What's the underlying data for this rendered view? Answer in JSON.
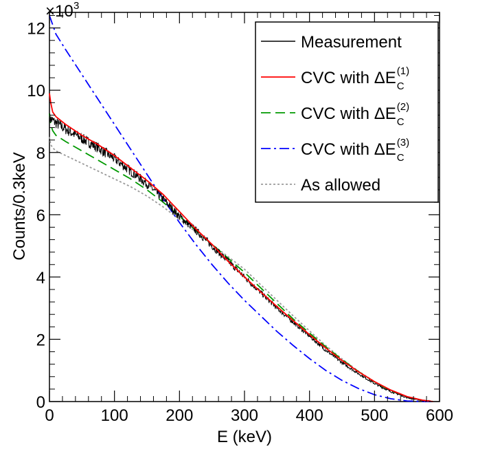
{
  "chart_data": {
    "type": "line",
    "xlabel": "E (keV)",
    "ylabel": "Counts/0.3keV",
    "xlim": [
      0,
      600
    ],
    "ylim": [
      0,
      12500
    ],
    "y_multiplier_label": "×10",
    "y_multiplier_exp": "3",
    "x_ticks": [
      0,
      100,
      200,
      300,
      400,
      500,
      600
    ],
    "y_ticks": [
      0,
      2000,
      4000,
      6000,
      8000,
      10000,
      12000
    ],
    "y_tick_labels": [
      "0",
      "2",
      "4",
      "6",
      "8",
      "10",
      "12"
    ],
    "legend_position": "top-right",
    "grid": false,
    "series": [
      {
        "name": "Measurement",
        "color": "#000000",
        "dash": "solid",
        "noise": true,
        "x": [
          0,
          10,
          25,
          50,
          75,
          100,
          125,
          150,
          175,
          200,
          225,
          250,
          275,
          300,
          325,
          350,
          375,
          400,
          425,
          450,
          475,
          500,
          525,
          550,
          575,
          590
        ],
        "y": [
          9100,
          8950,
          8750,
          8450,
          8150,
          7800,
          7400,
          7000,
          6500,
          5950,
          5500,
          5000,
          4500,
          4000,
          3500,
          3000,
          2550,
          2100,
          1650,
          1250,
          900,
          580,
          320,
          130,
          30,
          0
        ]
      },
      {
        "name": "CVC with ΔE_C^(1)",
        "label_main": "CVC with ΔE",
        "label_sub": "C",
        "label_sup": "(1)",
        "color": "#ff0000",
        "dash": "solid",
        "x": [
          0,
          2,
          5,
          10,
          25,
          50,
          75,
          100,
          125,
          150,
          175,
          200,
          225,
          250,
          275,
          300,
          325,
          350,
          375,
          400,
          425,
          450,
          475,
          500,
          525,
          550,
          575,
          590
        ],
        "y": [
          9900,
          9600,
          9300,
          9150,
          8900,
          8550,
          8250,
          7900,
          7500,
          7100,
          6650,
          6100,
          5550,
          5050,
          4500,
          4000,
          3520,
          3050,
          2600,
          2150,
          1720,
          1320,
          960,
          640,
          370,
          160,
          40,
          0
        ]
      },
      {
        "name": "CVC with ΔE_C^(2)",
        "label_main": "CVC with ΔE",
        "label_sub": "C",
        "label_sup": "(2)",
        "color": "#009900",
        "dash": "long-dash",
        "x": [
          0,
          2,
          5,
          10,
          25,
          50,
          75,
          100,
          125,
          150,
          175,
          200,
          225,
          250,
          275,
          300,
          325,
          350,
          375,
          400,
          425,
          450,
          475,
          500,
          525,
          550,
          575,
          590
        ],
        "y": [
          9250,
          8900,
          8700,
          8550,
          8350,
          8050,
          7750,
          7450,
          7150,
          6800,
          6400,
          5950,
          5500,
          5050,
          4600,
          4150,
          3650,
          3150,
          2650,
          2200,
          1760,
          1350,
          970,
          630,
          350,
          140,
          30,
          0
        ]
      },
      {
        "name": "CVC with ΔE_C^(3)",
        "label_main": "CVC with ΔE",
        "label_sub": "C",
        "label_sup": "(3)",
        "color": "#0000ff",
        "dash": "dash-dot",
        "x": [
          0,
          10,
          25,
          50,
          75,
          100,
          125,
          150,
          175,
          200,
          225,
          250,
          275,
          300,
          325,
          350,
          375,
          400,
          425,
          450,
          475,
          500,
          525,
          550,
          575,
          590
        ],
        "y": [
          12400,
          11800,
          11300,
          10500,
          9700,
          8900,
          8100,
          7300,
          6500,
          5750,
          5050,
          4400,
          3800,
          3250,
          2750,
          2250,
          1800,
          1380,
          1000,
          680,
          420,
          220,
          90,
          20,
          0,
          0
        ]
      },
      {
        "name": "As allowed",
        "color": "#999999",
        "dash": "dotted",
        "x": [
          0,
          2,
          5,
          10,
          25,
          50,
          75,
          100,
          125,
          150,
          175,
          200,
          225,
          250,
          275,
          300,
          325,
          350,
          375,
          400,
          425,
          450,
          475,
          500,
          525,
          550,
          575,
          590
        ],
        "y": [
          8500,
          8250,
          8150,
          8050,
          7900,
          7650,
          7400,
          7150,
          6900,
          6600,
          6250,
          5850,
          5450,
          5050,
          4650,
          4250,
          3750,
          3250,
          2750,
          2270,
          1800,
          1370,
          980,
          640,
          350,
          140,
          30,
          0
        ]
      }
    ]
  }
}
